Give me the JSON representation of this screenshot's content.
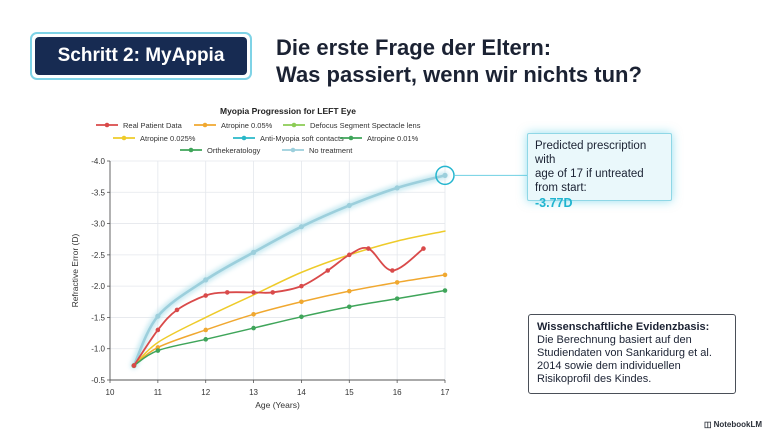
{
  "badge": {
    "label": "Schritt 2: MyAppia"
  },
  "headline": {
    "line1": "Die erste Frage der Eltern:",
    "line2": "Was passiert, wenn wir nichts tun?"
  },
  "callout": {
    "text_lines": [
      "Predicted prescription with",
      "age of 17 if untreated",
      "from start:"
    ],
    "value": "-3.77D"
  },
  "evidence": {
    "title": "Wissenschaftliche Evidenzbasis:",
    "text_lines": [
      "Die Berechnung basiert auf den",
      "Studiendaten von Sankaridurg et al.",
      "2014 sowie dem individuellen",
      "Risikoprofil des Kindes."
    ]
  },
  "brand": {
    "label": "NotebookLM",
    "icon": "notebook-logo-icon"
  },
  "chart_data": {
    "type": "line",
    "title": "Myopia Progression for LEFT Eye",
    "xlabel": "Age (Years)",
    "ylabel": "Refractive Error (D)",
    "xlim": [
      10,
      17
    ],
    "ylim": [
      -0.5,
      -4.0
    ],
    "y_axis_inverted": true,
    "x_ticks": [
      "10",
      "11",
      "12",
      "13",
      "14",
      "15",
      "16",
      "17"
    ],
    "y_ticks": [
      "-4.0",
      "-3.5",
      "-3.0",
      "-2.5",
      "-2.0",
      "-1.5",
      "-1.0",
      "-0.5"
    ],
    "grid": true,
    "legend_position": "top",
    "series": [
      {
        "name": "Real Patient Data",
        "color": "#d94a4a",
        "width": 1.8,
        "markers": true,
        "glow": false,
        "x": [
          10.5,
          11.0,
          11.4,
          12.0,
          12.45,
          13.0,
          13.4,
          14.0,
          14.55,
          15.0,
          15.4,
          15.9,
          16.55
        ],
        "y": [
          -0.73,
          -1.3,
          -1.62,
          -1.85,
          -1.9,
          -1.9,
          -1.9,
          -2.0,
          -2.25,
          -2.5,
          -2.6,
          -2.25,
          -2.6
        ]
      },
      {
        "name": "Atropine 0.05%",
        "color": "#f0a830",
        "width": 1.5,
        "markers": true,
        "glow": false,
        "x": [
          10.5,
          11.0,
          12.0,
          13.0,
          14.0,
          15.0,
          16.0,
          17.0
        ],
        "y": [
          -0.73,
          -1.02,
          -1.3,
          -1.55,
          -1.75,
          -1.92,
          -2.06,
          -2.18
        ]
      },
      {
        "name": "Defocus Segment Spectacle lens",
        "color": "#8ccc55",
        "width": 1.5,
        "markers": false,
        "glow": false,
        "x": [],
        "y": []
      },
      {
        "name": "Atropine 0.025%",
        "color": "#eecb2a",
        "width": 1.5,
        "markers": false,
        "glow": false,
        "x": [
          10.5,
          11.0,
          12.0,
          13.0,
          14.0,
          15.0,
          16.0,
          17.0
        ],
        "y": [
          -0.73,
          -1.1,
          -1.5,
          -1.86,
          -2.22,
          -2.5,
          -2.72,
          -2.88
        ]
      },
      {
        "name": "Anti-Myopia soft contacts",
        "color": "#2ab8c8",
        "width": 1.5,
        "markers": true,
        "glow": false,
        "x": [],
        "y": []
      },
      {
        "name": "Atropine 0.01%",
        "color": "#3fa55a",
        "width": 1.5,
        "markers": true,
        "glow": false,
        "x": [
          10.5,
          11.0,
          12.0,
          13.0,
          14.0,
          15.0,
          16.0,
          17.0
        ],
        "y": [
          -0.73,
          -0.97,
          -1.15,
          -1.33,
          -1.51,
          -1.67,
          -1.8,
          -1.93
        ]
      },
      {
        "name": "Orthekeratology",
        "color": "#3fa55a",
        "width": 1.5,
        "markers": false,
        "glow": false,
        "x": [],
        "y": []
      },
      {
        "name": "No treatment",
        "color": "#9ccfdc",
        "width": 2.6,
        "markers": true,
        "glow": true,
        "x": [
          10.5,
          11.0,
          12.0,
          13.0,
          14.0,
          15.0,
          16.0,
          17.0
        ],
        "y": [
          -0.73,
          -1.52,
          -2.1,
          -2.54,
          -2.95,
          -3.29,
          -3.57,
          -3.77
        ]
      }
    ],
    "highlight": {
      "x": 17.0,
      "y": -3.77
    }
  }
}
